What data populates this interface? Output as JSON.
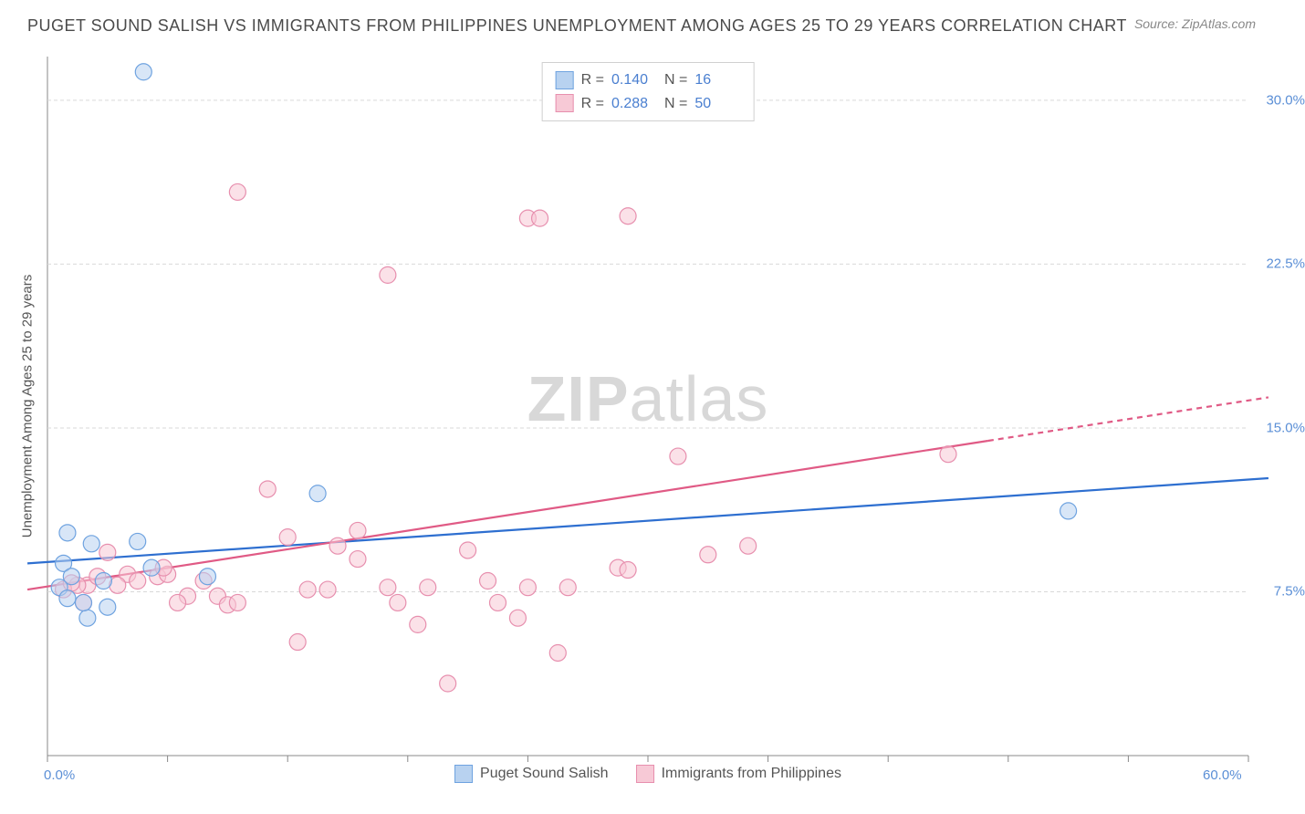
{
  "title": "PUGET SOUND SALISH VS IMMIGRANTS FROM PHILIPPINES UNEMPLOYMENT AMONG AGES 25 TO 29 YEARS CORRELATION CHART",
  "source_prefix": "Source: ",
  "source_name": "ZipAtlas.com",
  "y_axis_label": "Unemployment Among Ages 25 to 29 years",
  "watermark_a": "ZIP",
  "watermark_b": "atlas",
  "chart": {
    "type": "scatter",
    "xlim": [
      0,
      60
    ],
    "ylim": [
      0,
      32
    ],
    "x_ticks": [
      0,
      6,
      12,
      18,
      24,
      30,
      36,
      42,
      48,
      54,
      60
    ],
    "x_tick_labels_shown": {
      "0": "0.0%",
      "60": "60.0%"
    },
    "y_ticks": [
      7.5,
      15.0,
      22.5,
      30.0
    ],
    "y_tick_labels": [
      "7.5%",
      "15.0%",
      "22.5%",
      "30.0%"
    ],
    "grid_color": "#d9d9d9",
    "grid_dash": "4 3",
    "axis_color": "#888888",
    "background_color": "#ffffff",
    "label_color": "#5b8fd6",
    "marker_radius": 9,
    "marker_opacity": 0.55,
    "line_width": 2.2
  },
  "series": [
    {
      "key": "puget",
      "name": "Puget Sound Salish",
      "color_fill": "#b8d2f0",
      "color_stroke": "#6fa3e0",
      "r_label": "R =",
      "r_value": "0.140",
      "n_label": "N =",
      "n_value": "16",
      "trend": {
        "x1": -1,
        "y1": 8.8,
        "x2": 61,
        "y2": 12.7,
        "color": "#2e6fd0",
        "dash_after_x": null
      },
      "points": [
        [
          4.8,
          31.3
        ],
        [
          1.0,
          10.2
        ],
        [
          0.8,
          8.8
        ],
        [
          1.2,
          8.2
        ],
        [
          2.2,
          9.7
        ],
        [
          4.5,
          9.8
        ],
        [
          5.2,
          8.6
        ],
        [
          2.0,
          6.3
        ],
        [
          3.0,
          6.8
        ],
        [
          0.6,
          7.7
        ],
        [
          1.0,
          7.2
        ],
        [
          8.0,
          8.2
        ],
        [
          13.5,
          12.0
        ],
        [
          1.8,
          7.0
        ],
        [
          51.0,
          11.2
        ],
        [
          2.8,
          8.0
        ]
      ]
    },
    {
      "key": "philippines",
      "name": "Immigrants from Philippines",
      "color_fill": "#f7c9d6",
      "color_stroke": "#e78fae",
      "r_label": "R =",
      "r_value": "0.288",
      "n_label": "N =",
      "n_value": "50",
      "trend": {
        "x1": -1,
        "y1": 7.6,
        "x2": 61,
        "y2": 16.4,
        "color": "#e05a85",
        "dash_after_x": 47
      },
      "points": [
        [
          9.5,
          25.8
        ],
        [
          17.0,
          22.0
        ],
        [
          24.0,
          24.6
        ],
        [
          24.6,
          24.6
        ],
        [
          29.0,
          24.7
        ],
        [
          11.0,
          12.2
        ],
        [
          3.0,
          9.3
        ],
        [
          4.0,
          8.3
        ],
        [
          5.5,
          8.2
        ],
        [
          6.0,
          8.3
        ],
        [
          7.0,
          7.3
        ],
        [
          8.5,
          7.3
        ],
        [
          9.0,
          6.9
        ],
        [
          9.5,
          7.0
        ],
        [
          12.0,
          10.0
        ],
        [
          12.5,
          5.2
        ],
        [
          13.0,
          7.6
        ],
        [
          14.5,
          9.6
        ],
        [
          14.0,
          7.6
        ],
        [
          15.5,
          9.0
        ],
        [
          15.5,
          10.3
        ],
        [
          17.0,
          7.7
        ],
        [
          17.5,
          7.0
        ],
        [
          18.5,
          6.0
        ],
        [
          20.0,
          3.3
        ],
        [
          19.0,
          7.7
        ],
        [
          21.0,
          9.4
        ],
        [
          22.0,
          8.0
        ],
        [
          22.5,
          7.0
        ],
        [
          23.5,
          6.3
        ],
        [
          24.0,
          7.7
        ],
        [
          25.5,
          4.7
        ],
        [
          26.0,
          7.7
        ],
        [
          28.5,
          8.6
        ],
        [
          29.0,
          8.5
        ],
        [
          31.5,
          13.7
        ],
        [
          33.0,
          9.2
        ],
        [
          35.0,
          9.6
        ],
        [
          45.0,
          13.8
        ],
        [
          2.0,
          7.8
        ],
        [
          2.5,
          8.2
        ],
        [
          3.5,
          7.8
        ],
        [
          4.5,
          8.0
        ],
        [
          1.5,
          7.8
        ],
        [
          1.8,
          7.0
        ],
        [
          0.8,
          7.6
        ],
        [
          1.2,
          7.9
        ],
        [
          5.8,
          8.6
        ],
        [
          6.5,
          7.0
        ],
        [
          7.8,
          8.0
        ]
      ]
    }
  ]
}
